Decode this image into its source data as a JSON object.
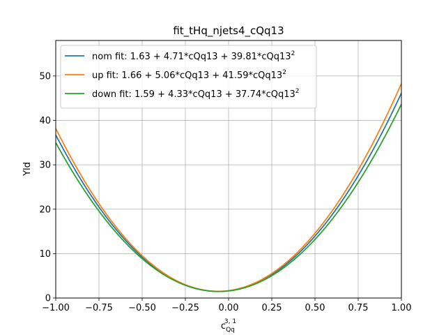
{
  "chart_data": {
    "type": "line",
    "title": "fit_tHq_njets4_cQq13",
    "xlabel": {
      "base": "c",
      "sub": "Qq",
      "sup": "3, 1"
    },
    "ylabel": "Yld",
    "xlim": [
      -1.0,
      1.0
    ],
    "ylim": [
      0,
      58
    ],
    "xticks": [
      -1.0,
      -0.75,
      -0.5,
      -0.25,
      0.0,
      0.25,
      0.5,
      0.75,
      1.0
    ],
    "xtick_labels": [
      "−1.00",
      "−0.75",
      "−0.50",
      "−0.25",
      "0.00",
      "0.25",
      "0.50",
      "0.75",
      "1.00"
    ],
    "yticks": [
      0,
      10,
      20,
      30,
      40,
      50
    ],
    "ytick_labels": [
      "0",
      "10",
      "20",
      "30",
      "40",
      "50"
    ],
    "grid": true,
    "legend_position": "top-left",
    "series": [
      {
        "name": "nom fit: 1.63 + 4.71*cQq13 + 39.81*cQq13",
        "name_sup": "2",
        "color": "#1f77b4",
        "coefficients": [
          1.63,
          4.71,
          39.81
        ]
      },
      {
        "name": "up fit: 1.66 + 5.06*cQq13 + 41.59*cQq13",
        "name_sup": "2",
        "color": "#ff7f0e",
        "coefficients": [
          1.66,
          5.06,
          41.59
        ]
      },
      {
        "name": "down fit: 1.59 + 4.33*cQq13 + 37.74*cQq13",
        "name_sup": "2",
        "color": "#2ca02c",
        "coefficients": [
          1.59,
          4.33,
          37.74
        ]
      }
    ]
  }
}
